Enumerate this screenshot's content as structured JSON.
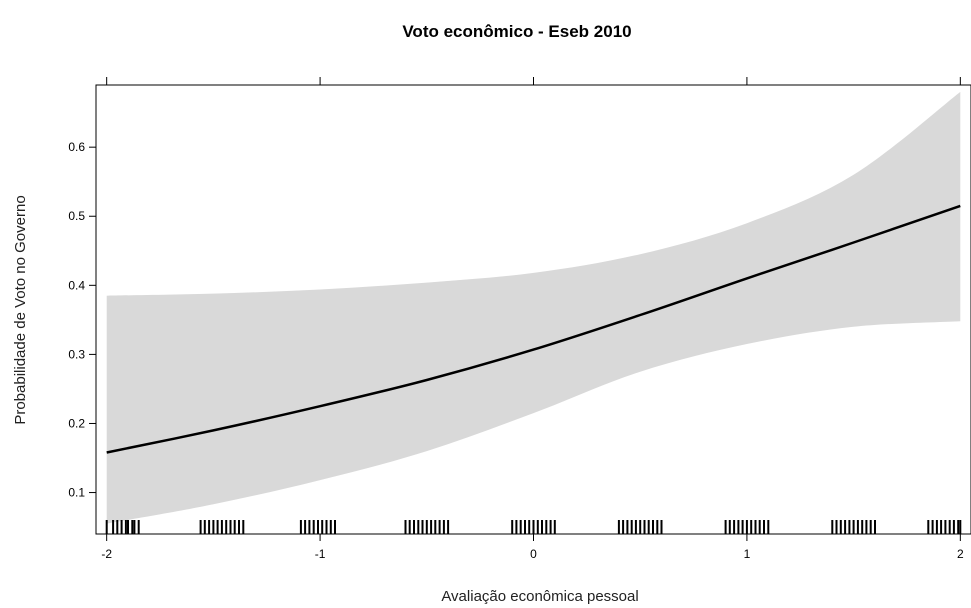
{
  "chart_data": {
    "type": "line",
    "title": "Voto econômico - Eseb 2010",
    "xlabel": "Avaliação econômica pessoal",
    "ylabel": "Probabilidade de Voto no Governo",
    "xlim": [
      -2.05,
      2.05
    ],
    "ylim": [
      0.04,
      0.69
    ],
    "x_ticks": [
      -2,
      -1,
      0,
      1,
      2
    ],
    "x_tick_labels": [
      "-2",
      "-1",
      "0",
      "1",
      "2"
    ],
    "y_ticks": [
      0.1,
      0.2,
      0.3,
      0.4,
      0.5,
      0.6
    ],
    "y_tick_labels": [
      "0.1",
      "0.2",
      "0.3",
      "0.4",
      "0.5",
      "0.6"
    ],
    "grid": false,
    "series": [
      {
        "x": [
          -2,
          -1.5,
          -1,
          -0.5,
          0,
          0.5,
          1,
          1.5,
          2
        ],
        "y": [
          0.158,
          0.19,
          0.225,
          0.263,
          0.307,
          0.357,
          0.41,
          0.462,
          0.515
        ],
        "lower": [
          0.055,
          0.083,
          0.118,
          0.16,
          0.215,
          0.275,
          0.315,
          0.34,
          0.348
        ],
        "upper": [
          0.385,
          0.388,
          0.394,
          0.404,
          0.418,
          0.445,
          0.49,
          0.56,
          0.68
        ],
        "color": "#000000",
        "band_color": "#d9d9d9"
      }
    ],
    "rug_x": [
      -2.0,
      -1.97,
      -1.95,
      -1.93,
      -1.91,
      -1.9,
      -1.88,
      -1.87,
      -1.85,
      -1.56,
      -1.54,
      -1.52,
      -1.5,
      -1.48,
      -1.46,
      -1.44,
      -1.42,
      -1.4,
      -1.38,
      -1.36,
      -1.09,
      -1.07,
      -1.05,
      -1.03,
      -1.01,
      -0.99,
      -0.97,
      -0.95,
      -0.93,
      -0.6,
      -0.58,
      -0.56,
      -0.54,
      -0.52,
      -0.5,
      -0.48,
      -0.46,
      -0.44,
      -0.42,
      -0.4,
      -0.1,
      -0.08,
      -0.06,
      -0.04,
      -0.02,
      0.0,
      0.02,
      0.04,
      0.06,
      0.08,
      0.1,
      0.4,
      0.42,
      0.44,
      0.46,
      0.48,
      0.5,
      0.52,
      0.54,
      0.56,
      0.58,
      0.6,
      0.9,
      0.92,
      0.94,
      0.96,
      0.98,
      1.0,
      1.02,
      1.04,
      1.06,
      1.08,
      1.1,
      1.4,
      1.42,
      1.44,
      1.46,
      1.48,
      1.5,
      1.52,
      1.54,
      1.56,
      1.58,
      1.6,
      1.85,
      1.87,
      1.89,
      1.91,
      1.93,
      1.95,
      1.97,
      1.99,
      2.0
    ]
  }
}
